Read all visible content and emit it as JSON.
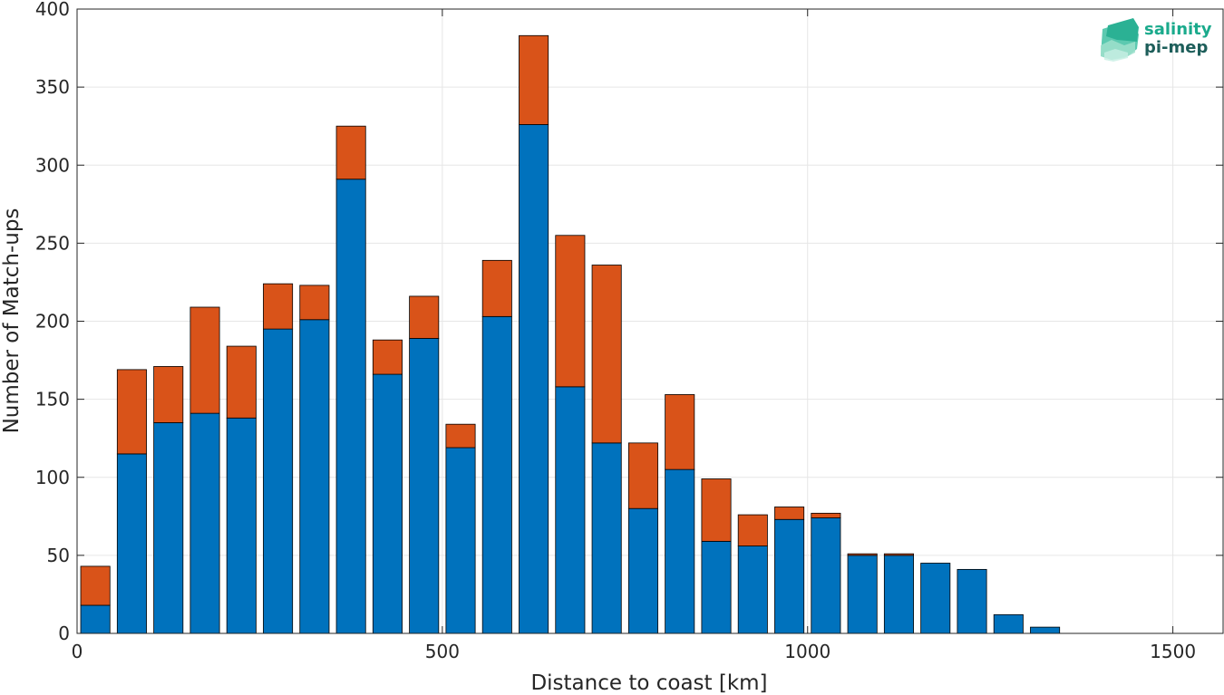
{
  "chart_data": {
    "type": "bar",
    "stacked": true,
    "title": "",
    "xlabel": "Distance to coast [km]",
    "ylabel": "Number of Match-ups",
    "xlim": [
      0,
      1570
    ],
    "ylim": [
      0,
      400
    ],
    "xticks": [
      0,
      500,
      1000,
      1500
    ],
    "yticks": [
      0,
      50,
      100,
      150,
      200,
      250,
      300,
      350,
      400
    ],
    "grid": true,
    "bar_width_km": 40,
    "x": [
      25,
      75,
      125,
      175,
      225,
      275,
      325,
      375,
      425,
      475,
      525,
      575,
      625,
      675,
      725,
      775,
      825,
      875,
      925,
      975,
      1025,
      1075,
      1125,
      1175,
      1225,
      1275,
      1325
    ],
    "series": [
      {
        "color": "#0072BD",
        "values": [
          18,
          115,
          135,
          141,
          138,
          195,
          201,
          291,
          166,
          189,
          119,
          203,
          326,
          158,
          122,
          80,
          105,
          59,
          56,
          73,
          74,
          50,
          50,
          45,
          41,
          12,
          4
        ]
      },
      {
        "color": "#D95319",
        "values": [
          25,
          54,
          36,
          68,
          46,
          29,
          22,
          34,
          22,
          27,
          15,
          36,
          57,
          97,
          114,
          42,
          48,
          40,
          20,
          8,
          3,
          1,
          1,
          0,
          0,
          0,
          0
        ]
      }
    ]
  },
  "logo": {
    "line1": "salinity",
    "line2": "pi-mep",
    "color1": "#1aaa8c",
    "color2": "#1d5e5a"
  }
}
